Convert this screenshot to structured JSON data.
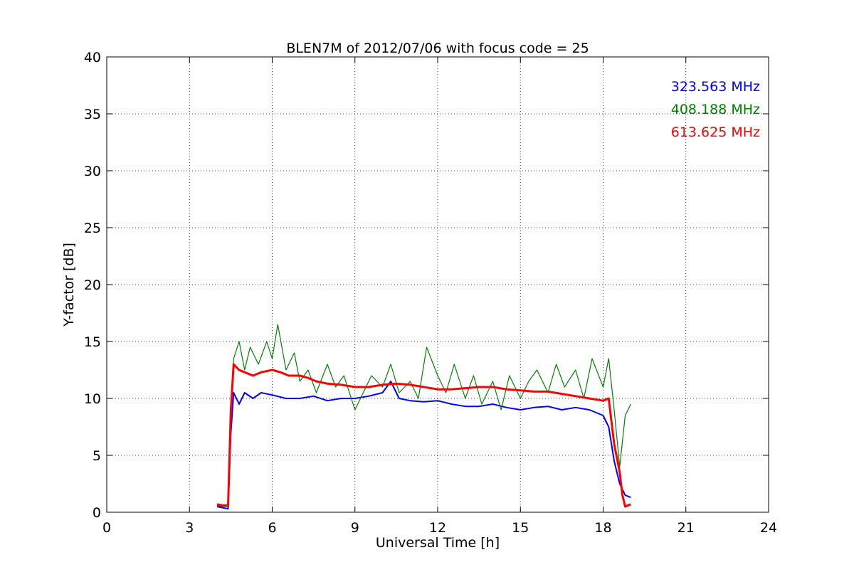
{
  "chart_data": {
    "type": "line",
    "title": "BLEN7M of 2012/07/06 with focus code = 25",
    "xlabel": "Universal Time [h]",
    "ylabel": "Y-factor [dB]",
    "xlim": [
      0,
      24
    ],
    "ylim": [
      0,
      40
    ],
    "xticks": [
      0,
      3,
      6,
      9,
      12,
      15,
      18,
      21,
      24
    ],
    "yticks": [
      0,
      5,
      10,
      15,
      20,
      25,
      30,
      35,
      40
    ],
    "grid": true,
    "legend_position": "top-right",
    "series": [
      {
        "name": "323.563 MHz",
        "color": "#0000ff",
        "x": [
          4.0,
          4.2,
          4.4,
          4.5,
          4.6,
          4.8,
          5.0,
          5.3,
          5.6,
          6.0,
          6.5,
          7.0,
          7.5,
          8.0,
          8.5,
          9.0,
          9.5,
          10.0,
          10.3,
          10.6,
          11.0,
          11.5,
          12.0,
          12.5,
          13.0,
          13.5,
          14.0,
          14.5,
          15.0,
          15.5,
          16.0,
          16.5,
          17.0,
          17.5,
          18.0,
          18.2,
          18.4,
          18.6,
          18.8,
          19.0
        ],
        "y": [
          0.5,
          0.4,
          0.3,
          7.0,
          10.5,
          9.5,
          10.5,
          10.0,
          10.5,
          10.3,
          10.0,
          10.0,
          10.2,
          9.8,
          10.0,
          10.0,
          10.2,
          10.5,
          11.5,
          10.0,
          9.8,
          9.7,
          9.8,
          9.5,
          9.3,
          9.3,
          9.5,
          9.2,
          9.0,
          9.2,
          9.3,
          9.0,
          9.2,
          9.0,
          8.5,
          7.5,
          4.5,
          2.5,
          1.5,
          1.3
        ]
      },
      {
        "name": "408.188 MHz",
        "color": "#008000",
        "x": [
          4.0,
          4.2,
          4.4,
          4.5,
          4.6,
          4.8,
          5.0,
          5.2,
          5.5,
          5.8,
          6.0,
          6.2,
          6.5,
          6.8,
          7.0,
          7.3,
          7.6,
          8.0,
          8.3,
          8.6,
          9.0,
          9.3,
          9.6,
          10.0,
          10.3,
          10.6,
          11.0,
          11.3,
          11.6,
          12.0,
          12.3,
          12.6,
          13.0,
          13.3,
          13.6,
          14.0,
          14.3,
          14.6,
          15.0,
          15.3,
          15.6,
          16.0,
          16.3,
          16.6,
          17.0,
          17.3,
          17.6,
          18.0,
          18.2,
          18.4,
          18.6,
          18.8,
          19.0
        ],
        "y": [
          0.6,
          0.5,
          0.5,
          8.0,
          13.5,
          15.0,
          12.5,
          14.5,
          13.0,
          15.0,
          13.5,
          16.5,
          12.5,
          14.0,
          11.5,
          12.5,
          10.5,
          13.0,
          11.0,
          12.0,
          9.0,
          10.5,
          12.0,
          11.0,
          13.0,
          10.5,
          11.5,
          10.0,
          14.5,
          12.0,
          10.5,
          13.0,
          10.0,
          12.0,
          9.5,
          11.5,
          9.0,
          12.0,
          10.0,
          11.5,
          12.5,
          10.5,
          13.0,
          11.0,
          12.5,
          10.0,
          13.5,
          11.0,
          13.5,
          9.0,
          4.0,
          8.5,
          9.5
        ]
      },
      {
        "name": "613.625 MHz",
        "color": "#ff0000",
        "x": [
          4.0,
          4.2,
          4.4,
          4.5,
          4.6,
          4.8,
          5.0,
          5.3,
          5.6,
          6.0,
          6.3,
          6.6,
          7.0,
          7.3,
          7.6,
          8.0,
          8.5,
          9.0,
          9.5,
          10.0,
          10.5,
          11.0,
          11.5,
          12.0,
          12.5,
          13.0,
          13.5,
          14.0,
          14.5,
          15.0,
          15.5,
          16.0,
          16.5,
          17.0,
          17.5,
          18.0,
          18.2,
          18.4,
          18.6,
          18.7,
          18.8,
          19.0
        ],
        "y": [
          0.7,
          0.6,
          0.6,
          9.0,
          13.0,
          12.5,
          12.3,
          12.0,
          12.3,
          12.5,
          12.3,
          12.0,
          12.0,
          11.8,
          11.5,
          11.3,
          11.2,
          11.0,
          11.0,
          11.2,
          11.3,
          11.2,
          11.0,
          10.8,
          10.8,
          10.9,
          11.0,
          11.0,
          10.8,
          10.7,
          10.6,
          10.6,
          10.4,
          10.2,
          10.0,
          9.8,
          10.0,
          6.0,
          3.5,
          1.5,
          0.5,
          0.7
        ]
      }
    ]
  }
}
